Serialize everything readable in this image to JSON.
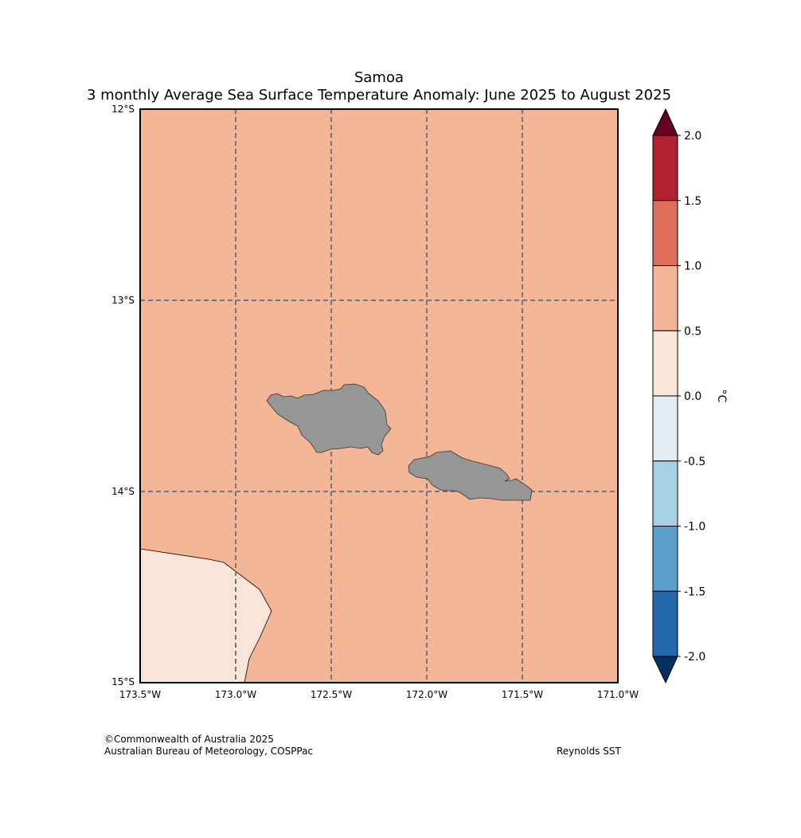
{
  "map": {
    "region": "Samoa",
    "title": "3 monthly Average Sea Surface Temperature Anomaly: June 2025 to August 2025",
    "lat_labels": [
      "12°S",
      "13°S",
      "14°S",
      "15°S"
    ],
    "lon_labels": [
      "173.5°W",
      "173.0°W",
      "172.5°W",
      "172.0°W",
      "171.5°W",
      "171.0°W"
    ],
    "extent": {
      "lon_min": -173.5,
      "lon_max": -171.0,
      "lat_min": -15.0,
      "lat_max": -12.0
    },
    "background_anomaly_class": "0.5 to 1.0",
    "sw_corner_anomaly_class": "0.0 to 0.5",
    "land_color": "#969696",
    "gridline_style": "dashed"
  },
  "colorbar": {
    "unit": "°C",
    "ticks": [
      "2.0",
      "1.5",
      "1.0",
      "0.5",
      "0.0",
      "-0.5",
      "-1.0",
      "-1.5",
      "-2.0"
    ],
    "colors": [
      "#b21f2e",
      "#dd6e5a",
      "#f5b698",
      "#f9e4da",
      "#e1edf3",
      "#a7d0e4",
      "#589fcb",
      "#2468ad"
    ],
    "over_color": "#67001f",
    "under_color": "#053061"
  },
  "footer": {
    "copyright": "©Commonwealth of Australia 2025",
    "agency": "Australian Bureau of Meteorology, COSPPac",
    "source": "Reynolds SST"
  }
}
